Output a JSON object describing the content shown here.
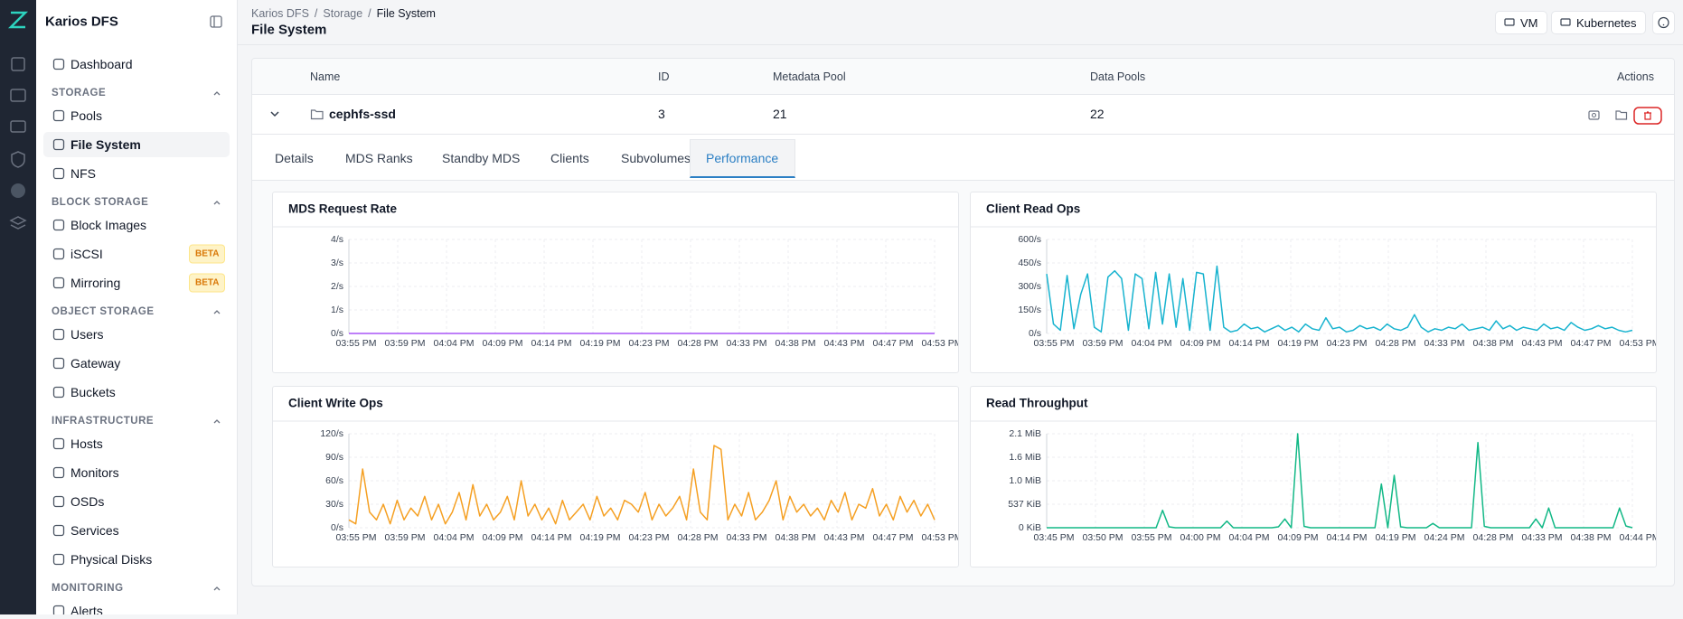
{
  "sidebar": {
    "brand": "Karios DFS",
    "top": [
      {
        "label": "Dashboard"
      }
    ],
    "sections": [
      {
        "title": "STORAGE",
        "items": [
          {
            "label": "Pools"
          },
          {
            "label": "File System"
          },
          {
            "label": "NFS"
          }
        ]
      },
      {
        "title": "BLOCK STORAGE",
        "items": [
          {
            "label": "Block Images"
          },
          {
            "label": "iSCSI",
            "badge": "BETA"
          },
          {
            "label": "Mirroring",
            "badge": "BETA"
          }
        ]
      },
      {
        "title": "OBJECT STORAGE",
        "items": [
          {
            "label": "Users"
          },
          {
            "label": "Gateway"
          },
          {
            "label": "Buckets"
          }
        ]
      },
      {
        "title": "INFRASTRUCTURE",
        "items": [
          {
            "label": "Hosts"
          },
          {
            "label": "Monitors"
          },
          {
            "label": "OSDs"
          },
          {
            "label": "Services"
          },
          {
            "label": "Physical Disks"
          }
        ]
      },
      {
        "title": "MONITORING",
        "items": [
          {
            "label": "Alerts"
          }
        ]
      }
    ]
  },
  "header": {
    "breadcrumb": [
      "Karios DFS",
      "Storage",
      "File System"
    ],
    "breadcrumb_separator": "/",
    "title": "File System",
    "buttons": [
      "VM",
      "Kubernetes"
    ]
  },
  "table": {
    "columns": [
      "Name",
      "ID",
      "Metadata Pool",
      "Data Pools",
      "Actions"
    ],
    "rows": [
      [
        "cephfs-ssd",
        "3",
        "21",
        "22"
      ]
    ]
  },
  "tabs": [
    "Details",
    "MDS Ranks",
    "Standby MDS",
    "Clients",
    "Subvolumes",
    "Performance"
  ],
  "active_tab": 5,
  "chart_data": [
    {
      "type": "line",
      "title": "MDS Request Rate",
      "color": "#a855f7",
      "xticks": [
        "03:55 PM",
        "03:59 PM",
        "04:04 PM",
        "04:09 PM",
        "04:14 PM",
        "04:19 PM",
        "04:23 PM",
        "04:28 PM",
        "04:33 PM",
        "04:38 PM",
        "04:43 PM",
        "04:47 PM",
        "04:53 PM"
      ],
      "ylim": [
        0,
        4
      ],
      "yticks": [
        {
          "value": 0,
          "label": "0/s"
        },
        {
          "value": 1,
          "label": "1/s"
        },
        {
          "value": 2,
          "label": "2/s"
        },
        {
          "value": 3,
          "label": "3/s"
        },
        {
          "value": 4,
          "label": "4/s"
        }
      ],
      "values": [
        0,
        0,
        0,
        0,
        0,
        0,
        0,
        0,
        0,
        0,
        0,
        0,
        0,
        0,
        0,
        0,
        0,
        0,
        0,
        0,
        0,
        0,
        0,
        0,
        0
      ],
      "grid": true
    },
    {
      "type": "line",
      "title": "Client Read Ops",
      "color": "#17b3cf",
      "xticks": [
        "03:55 PM",
        "03:59 PM",
        "04:04 PM",
        "04:09 PM",
        "04:14 PM",
        "04:19 PM",
        "04:23 PM",
        "04:28 PM",
        "04:33 PM",
        "04:38 PM",
        "04:43 PM",
        "04:47 PM",
        "04:53 PM"
      ],
      "ylim": [
        0,
        600
      ],
      "yticks": [
        {
          "value": 0,
          "label": "0/s"
        },
        {
          "value": 150,
          "label": "150/s"
        },
        {
          "value": 300,
          "label": "300/s"
        },
        {
          "value": 450,
          "label": "450/s"
        },
        {
          "value": 600,
          "label": "600/s"
        }
      ],
      "values": [
        380,
        60,
        20,
        370,
        30,
        250,
        380,
        40,
        10,
        360,
        400,
        350,
        20,
        380,
        350,
        30,
        390,
        60,
        380,
        40,
        350,
        20,
        390,
        380,
        20,
        430,
        40,
        10,
        20,
        60,
        30,
        40,
        10,
        30,
        50,
        20,
        40,
        10,
        60,
        30,
        20,
        100,
        30,
        40,
        10,
        20,
        50,
        30,
        40,
        20,
        60,
        30,
        20,
        40,
        120,
        40,
        10,
        30,
        20,
        40,
        30,
        60,
        20,
        30,
        40,
        20,
        80,
        30,
        50,
        20,
        40,
        30,
        20,
        60,
        30,
        40,
        20,
        70,
        40,
        20,
        30,
        50,
        30,
        40,
        20,
        10,
        20
      ],
      "grid": true
    },
    {
      "type": "line",
      "title": "Client Write Ops",
      "color": "#f5a023",
      "xticks": [
        "03:55 PM",
        "03:59 PM",
        "04:04 PM",
        "04:09 PM",
        "04:14 PM",
        "04:19 PM",
        "04:23 PM",
        "04:28 PM",
        "04:33 PM",
        "04:38 PM",
        "04:43 PM",
        "04:47 PM",
        "04:53 PM"
      ],
      "ylim": [
        0,
        120
      ],
      "yticks": [
        {
          "value": 0,
          "label": "0/s"
        },
        {
          "value": 30,
          "label": "30/s"
        },
        {
          "value": 60,
          "label": "60/s"
        },
        {
          "value": 90,
          "label": "90/s"
        },
        {
          "value": 120,
          "label": "120/s"
        }
      ],
      "values": [
        10,
        5,
        75,
        20,
        10,
        30,
        5,
        35,
        10,
        25,
        15,
        40,
        10,
        30,
        5,
        20,
        45,
        10,
        55,
        15,
        30,
        10,
        20,
        40,
        10,
        60,
        15,
        30,
        10,
        25,
        5,
        35,
        10,
        20,
        30,
        10,
        40,
        15,
        25,
        10,
        35,
        30,
        20,
        45,
        10,
        30,
        15,
        25,
        40,
        10,
        75,
        20,
        10,
        105,
        100,
        10,
        30,
        15,
        45,
        10,
        20,
        35,
        60,
        10,
        40,
        20,
        30,
        15,
        25,
        10,
        35,
        20,
        45,
        10,
        30,
        25,
        50,
        15,
        30,
        10,
        40,
        20,
        35,
        15,
        30,
        10
      ],
      "grid": true
    },
    {
      "type": "line",
      "title": "Read Throughput",
      "color": "#12b886",
      "xticks": [
        "03:45 PM",
        "03:50 PM",
        "03:55 PM",
        "04:00 PM",
        "04:04 PM",
        "04:09 PM",
        "04:14 PM",
        "04:19 PM",
        "04:24 PM",
        "04:28 PM",
        "04:33 PM",
        "04:38 PM",
        "04:44 PM"
      ],
      "ylim": [
        0,
        2150
      ],
      "yticks": [
        {
          "value": 0,
          "label": "0 KiB"
        },
        {
          "value": 537,
          "label": "537 KiB"
        },
        {
          "value": 1075,
          "label": "1.0 MiB"
        },
        {
          "value": 1612,
          "label": "1.6 MiB"
        },
        {
          "value": 2150,
          "label": "2.1 MiB"
        }
      ],
      "values": [
        0,
        0,
        0,
        0,
        0,
        0,
        0,
        0,
        0,
        0,
        0,
        0,
        0,
        0,
        0,
        0,
        0,
        0,
        400,
        20,
        0,
        0,
        0,
        0,
        0,
        0,
        0,
        0,
        150,
        0,
        0,
        0,
        0,
        0,
        0,
        0,
        20,
        200,
        0,
        2150,
        30,
        0,
        0,
        0,
        0,
        0,
        0,
        0,
        0,
        0,
        0,
        0,
        1000,
        0,
        1200,
        20,
        0,
        0,
        0,
        0,
        100,
        0,
        0,
        0,
        0,
        0,
        0,
        1950,
        30,
        0,
        0,
        0,
        0,
        0,
        0,
        0,
        200,
        0,
        450,
        0,
        0,
        0,
        0,
        0,
        0,
        0,
        0,
        0,
        0,
        450,
        40,
        0
      ],
      "grid": true
    }
  ]
}
